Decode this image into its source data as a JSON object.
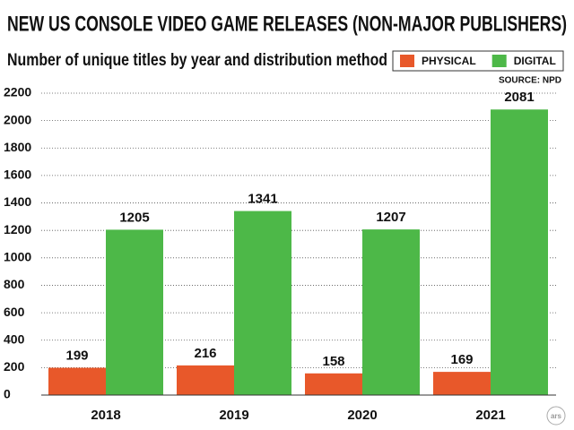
{
  "chart_data": {
    "type": "bar",
    "title": "NEW US CONSOLE VIDEO GAME RELEASES (NON-MAJOR PUBLISHERS)",
    "subtitle": "Number of unique titles by year and distribution method",
    "source": "SOURCE: NPD",
    "logo": "ars",
    "categories": [
      "2018",
      "2019",
      "2020",
      "2021"
    ],
    "series": [
      {
        "name": "PHYSICAL",
        "color": "#e8582a",
        "values": [
          199,
          216,
          158,
          169
        ]
      },
      {
        "name": "DIGITAL",
        "color": "#4db848",
        "values": [
          1205,
          1341,
          1207,
          2081
        ]
      }
    ],
    "ylim": [
      0,
      2200
    ],
    "yticks": [
      0,
      200,
      400,
      600,
      800,
      1000,
      1200,
      1400,
      1600,
      1800,
      2000,
      2200
    ],
    "grid": true,
    "legend": "top-right"
  }
}
